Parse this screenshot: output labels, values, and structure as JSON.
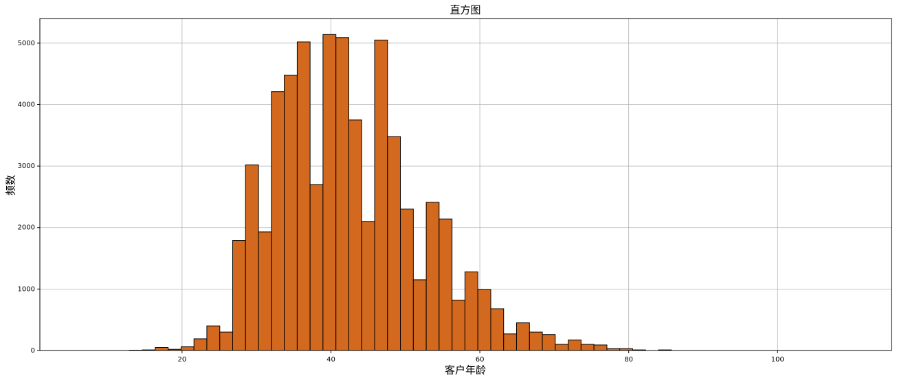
{
  "chart_data": {
    "type": "histogram",
    "title": "直方图",
    "x_label": "客户年龄",
    "y_label": "频数",
    "bins": [
      6,
      7.73,
      9.47,
      11.2,
      12.93,
      14.67,
      16.4,
      18.13,
      19.87,
      21.6,
      23.33,
      25.07,
      26.8,
      28.53,
      30.27,
      32,
      33.73,
      35.47,
      37.2,
      38.93,
      40.67,
      42.4,
      44.13,
      45.87,
      47.6,
      49.33,
      51.07,
      52.8,
      54.53,
      56.27,
      58,
      59.73,
      61.47,
      63.2,
      64.93,
      66.67,
      68.4,
      70.13,
      71.87,
      73.6,
      75.33,
      77.07,
      78.8,
      80.53,
      82.27,
      84,
      85.73,
      87.47,
      89.2,
      90.93,
      92.67,
      94.4,
      96.13,
      97.87,
      99.6,
      101.33,
      103.07,
      104.8,
      106.53,
      108.27,
      110
    ],
    "values": [
      0,
      0,
      0,
      0,
      5,
      10,
      50,
      20,
      60,
      190,
      400,
      300,
      1790,
      3020,
      1930,
      4210,
      4480,
      5020,
      2700,
      5140,
      5090,
      3750,
      2100,
      5050,
      3480,
      2300,
      1150,
      2410,
      2140,
      820,
      1280,
      990,
      680,
      270,
      450,
      300,
      260,
      100,
      170,
      100,
      90,
      30,
      30,
      10,
      0,
      10,
      0,
      0,
      0,
      0,
      0,
      0,
      0,
      0,
      0,
      0,
      0,
      0,
      0,
      0
    ],
    "color": "#d2691e",
    "edgecolor": "#000000",
    "xlim": [
      0.9,
      115.3
    ],
    "xticks": [
      20,
      40,
      60,
      80,
      100
    ],
    "ylim": [
      0,
      5400
    ],
    "yticks": [
      0,
      1000,
      2000,
      3000,
      4000,
      5000
    ],
    "grid": true
  }
}
